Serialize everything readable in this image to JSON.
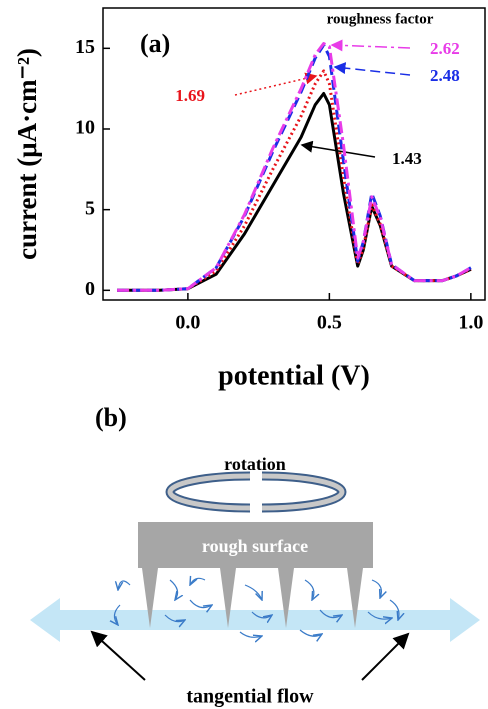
{
  "chart_data": {
    "type": "line",
    "panel_label": "(a)",
    "legend_title": "roughness factor",
    "xlabel": "potential (V)",
    "ylabel": "current (μA·cm⁻²)",
    "x": [
      -0.25,
      -0.1,
      0,
      0.1,
      0.2,
      0.3,
      0.4,
      0.45,
      0.48,
      0.5,
      0.55,
      0.6,
      0.62,
      0.65,
      0.68,
      0.72,
      0.8,
      0.9,
      0.95,
      1.0
    ],
    "series": [
      {
        "name": "1.43",
        "color": "#000000",
        "dash": "solid",
        "values": [
          0,
          0,
          0.1,
          1.0,
          3.5,
          6.5,
          9.5,
          11.5,
          12.2,
          11.5,
          6,
          1.5,
          2.5,
          5.2,
          4,
          1.5,
          0.6,
          0.6,
          0.9,
          1.3
        ]
      },
      {
        "name": "1.69",
        "color": "#e8141b",
        "dash": "dot",
        "values": [
          0,
          0,
          0.1,
          1.2,
          4,
          7.5,
          10.8,
          12.8,
          13.6,
          12.8,
          7,
          1.6,
          2.6,
          5.3,
          4.1,
          1.5,
          0.6,
          0.6,
          0.9,
          1.3
        ]
      },
      {
        "name": "2.48",
        "color": "#1a2ee6",
        "dash": "dash",
        "values": [
          0,
          0,
          0.1,
          1.4,
          4.6,
          8.6,
          12.3,
          14.4,
          15.2,
          14.5,
          8,
          1.8,
          3,
          6,
          4.6,
          1.6,
          0.6,
          0.6,
          0.9,
          1.4
        ]
      },
      {
        "name": "2.62",
        "color": "#e83ce8",
        "dash": "dashdot",
        "values": [
          0,
          0,
          0.1,
          1.4,
          4.7,
          8.8,
          12.5,
          14.6,
          15.3,
          15.1,
          9,
          2,
          3,
          5.8,
          4.5,
          1.6,
          0.6,
          0.6,
          0.9,
          1.4
        ]
      }
    ],
    "xlim": [
      -0.3,
      1.05
    ],
    "ylim": [
      -0.6,
      17.5
    ],
    "xticks": [
      {
        "value": 0,
        "label": "0.0"
      },
      0.5,
      {
        "value": 1,
        "label": "1.0"
      }
    ],
    "yticks": [
      0,
      5,
      10,
      15
    ]
  },
  "diagram": {
    "label": "(b)",
    "rotation": "rotation",
    "surface": "rough surface",
    "flow": "tangential flow"
  }
}
